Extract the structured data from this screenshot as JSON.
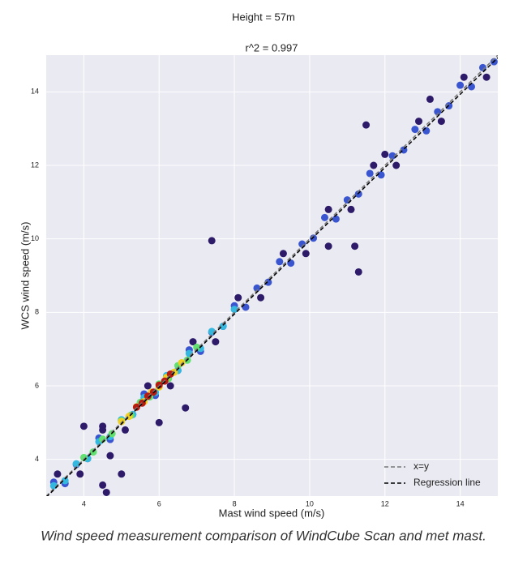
{
  "chart_data": {
    "type": "scatter",
    "title": "Height = 57m",
    "subtitle": "r^2 = 0.997",
    "xlabel": "Mast wind speed (m/s)",
    "ylabel": "WCS wind speed (m/s)",
    "xlim": [
      3,
      15
    ],
    "ylim": [
      3,
      15
    ],
    "xticks": [
      4,
      6,
      8,
      10,
      12,
      14
    ],
    "yticks": [
      4,
      6,
      8,
      10,
      12,
      14
    ],
    "grid": true,
    "legend": "lower right",
    "series": [
      {
        "color": "#2d1b69",
        "x": [
          3.3,
          3.9,
          4.5,
          5.1,
          5.7,
          6.3,
          6.9,
          7.5,
          8.1,
          8.7,
          9.3,
          9.9,
          10.5,
          11.1,
          11.7,
          12.3,
          12.9,
          13.5,
          14.1,
          14.7,
          7.4,
          10.5,
          11.2,
          11.3,
          4.0,
          4.5,
          4.7,
          5.0,
          4.5,
          4.6,
          6.0,
          6.7,
          11.5,
          12.0,
          13.2
        ],
        "values": [
          3.6,
          3.6,
          4.8,
          4.8,
          6.0,
          6.0,
          7.2,
          7.2,
          8.4,
          8.4,
          9.6,
          9.6,
          10.8,
          10.8,
          12.0,
          12.0,
          13.2,
          13.2,
          14.4,
          14.4,
          9.95,
          9.8,
          9.8,
          9.1,
          4.9,
          4.9,
          4.1,
          3.6,
          3.3,
          3.1,
          5.0,
          5.4,
          13.1,
          12.3,
          13.8
        ]
      },
      {
        "color": "#3a55d0",
        "x": [
          3.2,
          3.5,
          3.8,
          4.1,
          4.4,
          4.7,
          5.0,
          5.3,
          5.6,
          5.9,
          6.2,
          6.5,
          6.8,
          7.1,
          7.4,
          7.7,
          8.0,
          8.3,
          8.6,
          8.9,
          9.2,
          9.5,
          9.8,
          10.1,
          10.4,
          10.7,
          11.0,
          11.3,
          11.6,
          11.9,
          12.2,
          12.5,
          12.8,
          13.1,
          13.4,
          13.7,
          14.0,
          14.3,
          14.6,
          14.9
        ],
        "values": [
          3.38,
          3.34,
          3.86,
          4.02,
          4.58,
          4.54,
          5.06,
          5.22,
          5.78,
          5.74,
          6.26,
          6.42,
          6.98,
          6.94,
          7.46,
          7.62,
          8.18,
          8.14,
          8.66,
          8.82,
          9.38,
          9.34,
          9.86,
          10.02,
          10.58,
          10.54,
          11.06,
          11.22,
          11.78,
          11.74,
          12.26,
          12.42,
          12.98,
          12.94,
          13.46,
          13.62,
          14.18,
          14.14,
          14.66,
          14.82
        ]
      },
      {
        "color": "#35b8e0",
        "x": [
          3.2,
          3.5,
          3.8,
          4.1,
          4.4,
          4.7,
          5.0,
          5.3,
          5.6,
          5.9,
          6.2,
          6.5,
          6.8,
          7.1,
          7.4,
          7.7,
          8.0
        ],
        "values": [
          3.28,
          3.42,
          3.88,
          4.02,
          4.48,
          4.62,
          5.08,
          5.22,
          5.68,
          5.82,
          6.28,
          6.42,
          6.88,
          7.02,
          7.48,
          7.62,
          8.08
        ]
      },
      {
        "color": "#62e070",
        "x": [
          4.0,
          4.25,
          4.5,
          4.75,
          5.0,
          5.25,
          5.5,
          5.75,
          6.0,
          6.25,
          6.5,
          6.75,
          7.0
        ],
        "values": [
          4.05,
          4.2,
          4.55,
          4.7,
          5.05,
          5.2,
          5.55,
          5.7,
          6.05,
          6.2,
          6.55,
          6.7,
          7.05
        ]
      },
      {
        "color": "#f0d020",
        "x": [
          5.0,
          5.2,
          5.4,
          5.6,
          5.8,
          6.0,
          6.2,
          6.4,
          6.6
        ],
        "values": [
          5.03,
          5.17,
          5.43,
          5.57,
          5.83,
          5.97,
          6.23,
          6.37,
          6.63
        ]
      },
      {
        "color": "#b81c10",
        "x": [
          5.4,
          5.55,
          5.7,
          5.85,
          6.0,
          6.15,
          6.3
        ],
        "values": [
          5.42,
          5.53,
          5.72,
          5.83,
          6.02,
          6.13,
          6.32
        ]
      }
    ],
    "lines": [
      {
        "name": "x=y",
        "color": "#777777",
        "x": [
          3,
          15
        ],
        "values": [
          3,
          15
        ]
      },
      {
        "name": "Regression line",
        "color": "#000000",
        "x": [
          3,
          15
        ],
        "values": [
          2.97,
          14.93
        ]
      }
    ]
  },
  "caption": "Wind speed measurement comparison of WindCube Scan and met mast."
}
